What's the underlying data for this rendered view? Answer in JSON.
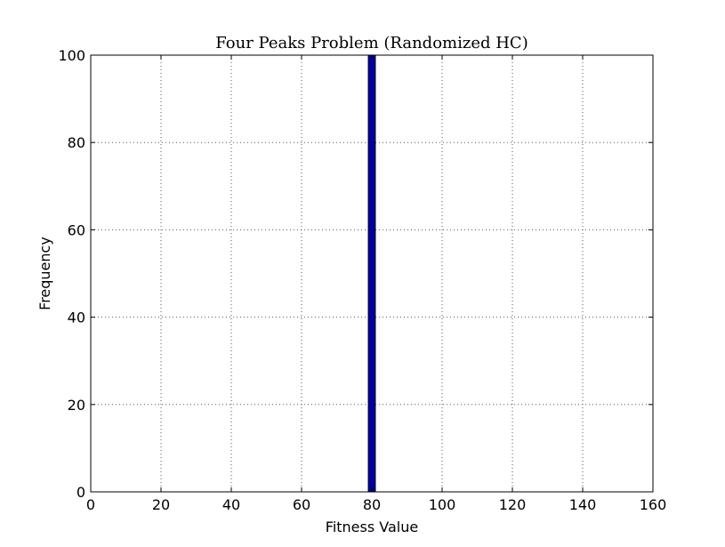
{
  "chart_data": {
    "type": "bar",
    "title": "Four Peaks Problem (Randomized HC)",
    "xlabel": "Fitness Value",
    "ylabel": "Frequency",
    "xlim": [
      0,
      160
    ],
    "ylim": [
      0,
      100
    ],
    "xticks": [
      0,
      20,
      40,
      60,
      80,
      100,
      120,
      140,
      160
    ],
    "yticks": [
      0,
      20,
      40,
      60,
      80,
      100
    ],
    "grid": true,
    "bins": [
      {
        "x0": 79,
        "x1": 81,
        "value": 100
      }
    ],
    "colors": {
      "bar_fill": "#0000a0",
      "bar_edge": "#000000",
      "grid": "#555555"
    }
  }
}
